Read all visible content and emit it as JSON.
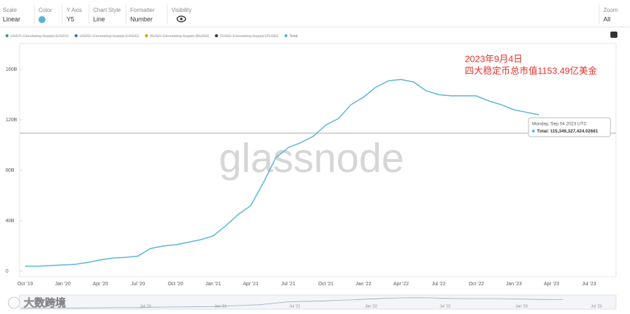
{
  "toolbar": [
    {
      "label": "Scale",
      "value": "Linear"
    },
    {
      "label": "Color"
    },
    {
      "label": "Y Axis",
      "value": "Y5"
    },
    {
      "label": "Chart Style",
      "value": "Line"
    },
    {
      "label": "Formatter",
      "value": "Number"
    },
    {
      "label": "Visibility"
    },
    {
      "label": "Zoom",
      "value": "All"
    }
  ],
  "chart_data": {
    "type": "line",
    "watermark": "glassnode",
    "hidden_series": [
      {
        "name": "USDT: Circulating Supply [USDT]",
        "color": "#26a17b"
      },
      {
        "name": "USDC: Circulating Supply [USDC]",
        "color": "#2775ca"
      },
      {
        "name": "BUSD: Circulating Supply [BUSD]",
        "color": "#d4a20b"
      },
      {
        "name": "TUSD: Circulating Supply [TUSD]",
        "color": "#2a2f6e"
      }
    ],
    "categories": [
      "Oct '19",
      null,
      null,
      "Jan '20",
      null,
      null,
      "Apr '20",
      null,
      null,
      "Jul '20",
      null,
      null,
      "Oct '20",
      null,
      null,
      "Jan '21",
      null,
      null,
      "Apr '21",
      null,
      null,
      "Jul '21",
      null,
      null,
      "Oct '21",
      null,
      null,
      "Jan '22",
      null,
      null,
      "Apr '22",
      null,
      null,
      "Jul '22",
      null,
      null,
      "Oct '22",
      null,
      null,
      "Jan '23",
      null,
      null,
      "Apr '23",
      null,
      null,
      "Jul '23"
    ],
    "series": [
      {
        "name": "Total",
        "color": "#5ab4d6",
        "values": [
          4,
          4,
          4.5,
          5,
          5.5,
          7,
          9,
          10.5,
          11,
          12,
          18,
          20,
          21,
          23,
          25,
          28,
          36,
          45,
          52,
          70,
          90,
          98,
          102,
          107,
          116,
          121,
          132,
          138,
          146,
          151,
          152,
          150,
          143,
          140,
          139,
          139,
          139,
          135,
          132,
          128,
          126,
          124,
          null,
          null,
          null,
          null
        ]
      }
    ],
    "ylim": [
      0,
      180
    ],
    "yticks": [
      0,
      {
        "value": 40,
        "label": "40B"
      },
      {
        "value": 80,
        "label": "80B"
      },
      {
        "value": 120,
        "label": "120B"
      },
      {
        "value": 160,
        "label": "160B"
      }
    ],
    "annotation": [
      "2023年9月4日",
      "四大稳定币总市值1153.49亿美金"
    ],
    "tooltip": {
      "date": "Monday, Sep 04 2023 UTC",
      "text": "Total: 115,349,327,424.02681"
    },
    "navigator_labels": [
      "Jul '20",
      "Jan '21",
      "Jul '21",
      "Jan '22",
      "Jul '22",
      "Jan '23",
      "Jul '23"
    ]
  },
  "brand": "大数跨境"
}
